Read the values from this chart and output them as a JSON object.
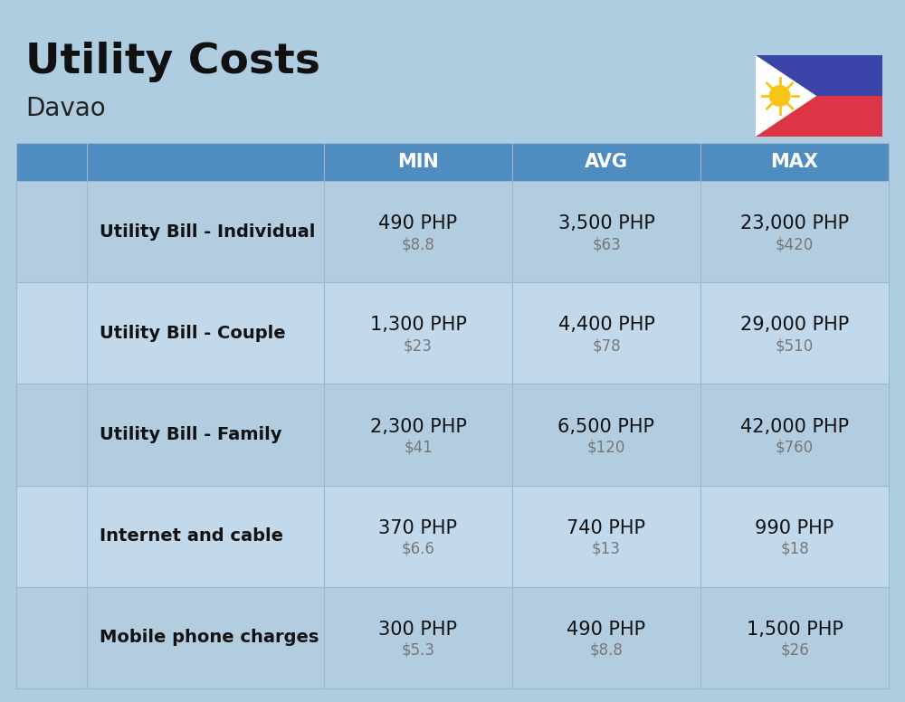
{
  "title": "Utility Costs",
  "subtitle": "Davao",
  "background_color": "#aecde0",
  "header_bg_color": "#4f8cbf",
  "header_text_color": "#ffffff",
  "row_bg_color_even": "#c2d9ec",
  "row_bg_color_odd": "#b3cde0",
  "cell_line_color": "#9ab8d0",
  "columns": [
    "MIN",
    "AVG",
    "MAX"
  ],
  "rows": [
    {
      "label": "Utility Bill - Individual",
      "min_php": "490 PHP",
      "min_usd": "$8.8",
      "avg_php": "3,500 PHP",
      "avg_usd": "$63",
      "max_php": "23,000 PHP",
      "max_usd": "$420"
    },
    {
      "label": "Utility Bill - Couple",
      "min_php": "1,300 PHP",
      "min_usd": "$23",
      "avg_php": "4,400 PHP",
      "avg_usd": "$78",
      "max_php": "29,000 PHP",
      "max_usd": "$510"
    },
    {
      "label": "Utility Bill - Family",
      "min_php": "2,300 PHP",
      "min_usd": "$41",
      "avg_php": "6,500 PHP",
      "avg_usd": "$120",
      "max_php": "42,000 PHP",
      "max_usd": "$760"
    },
    {
      "label": "Internet and cable",
      "min_php": "370 PHP",
      "min_usd": "$6.6",
      "avg_php": "740 PHP",
      "avg_usd": "$13",
      "max_php": "990 PHP",
      "max_usd": "$18"
    },
    {
      "label": "Mobile phone charges",
      "min_php": "300 PHP",
      "min_usd": "$5.3",
      "avg_php": "490 PHP",
      "avg_usd": "$8.8",
      "max_php": "1,500 PHP",
      "max_usd": "$26"
    }
  ],
  "title_fontsize": 34,
  "subtitle_fontsize": 20,
  "header_fontsize": 15,
  "label_fontsize": 14,
  "value_fontsize": 15,
  "usd_fontsize": 12,
  "flag_colors": {
    "blue": "#3b44a9",
    "red": "#dc3545",
    "white": "#ffffff",
    "yellow": "#f5c518"
  }
}
